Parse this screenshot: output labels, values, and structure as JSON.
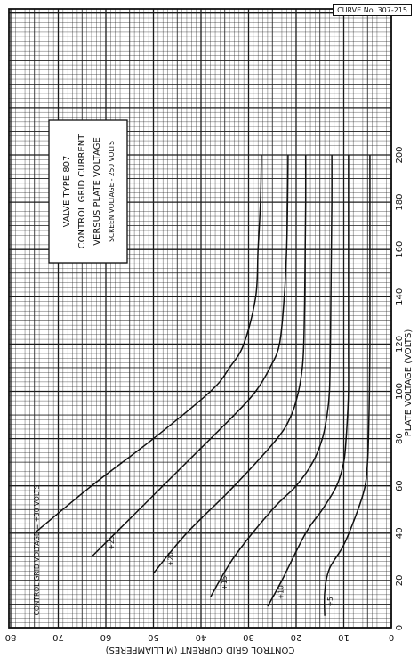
{
  "curve_id": "CURVE No. 307-215",
  "title_lines": [
    "VALVE TYPE 807",
    "CONTROL GRID CURRENT",
    "VERSUS PLATE VOLTAGE"
  ],
  "title_note": "SCREEN VOLTAGE - 250 VOLTS",
  "chart_data": {
    "type": "line",
    "orientation": "rotated 90 degrees counter-clockwise on the page",
    "xlabel": "PLATE VOLTAGE (VOLTS)",
    "ylabel": "CONTROL GRID CURRENT (MILLIAMPERES)",
    "xlim": [
      0,
      200
    ],
    "ylim": [
      0,
      80
    ],
    "x_ticks": [
      0,
      20,
      40,
      60,
      80,
      100,
      120,
      140,
      160,
      180,
      200
    ],
    "y_ticks": [
      0,
      10,
      20,
      30,
      40,
      50,
      60,
      70,
      80
    ],
    "grid": true,
    "parameter_label": "CONTROL GRID VOLTAGE = +30 VOLTS",
    "series": [
      {
        "label": "+30",
        "x": [
          40,
          60,
          80,
          100,
          110,
          120,
          140,
          160,
          180,
          200
        ],
        "y": [
          75,
          63,
          50,
          38,
          34,
          31,
          28.5,
          28,
          27.5,
          27.3
        ]
      },
      {
        "label": "+25",
        "x": [
          30,
          50,
          70,
          90,
          100,
          110,
          120,
          140,
          160,
          180,
          200
        ],
        "y": [
          63,
          53,
          43,
          33,
          28.5,
          25.5,
          23.5,
          22.5,
          22,
          21.8,
          21.7
        ]
      },
      {
        "label": "+20",
        "x": [
          23,
          40,
          60,
          80,
          90,
          100,
          110,
          120,
          140,
          160,
          180,
          200
        ],
        "y": [
          50,
          43,
          33,
          24,
          21,
          19.5,
          18.7,
          18.4,
          18.2,
          18.1,
          18,
          18
        ]
      },
      {
        "label": "+15",
        "x": [
          13,
          30,
          50,
          60,
          70,
          80,
          90,
          100,
          120,
          140,
          160,
          180,
          200
        ],
        "y": [
          38,
          33,
          25,
          20,
          16.5,
          14.5,
          13.5,
          13,
          12.8,
          12.7,
          12.6,
          12.5,
          12.5
        ]
      },
      {
        "label": "+10",
        "x": [
          9,
          20,
          40,
          50,
          60,
          70,
          80,
          90,
          100,
          120,
          140,
          160,
          180,
          200
        ],
        "y": [
          26,
          23,
          18,
          14.5,
          11.5,
          10,
          9.5,
          9.2,
          9,
          9,
          9,
          9,
          9,
          9
        ]
      },
      {
        "label": "+5",
        "x": [
          5,
          15,
          25,
          35,
          50,
          60,
          70,
          80,
          100,
          120,
          140,
          160,
          180,
          200
        ],
        "y": [
          14,
          14,
          13,
          10,
          7,
          5.5,
          5,
          4.8,
          4.6,
          4.5,
          4.5,
          4.5,
          4.5,
          4.5
        ]
      }
    ]
  }
}
